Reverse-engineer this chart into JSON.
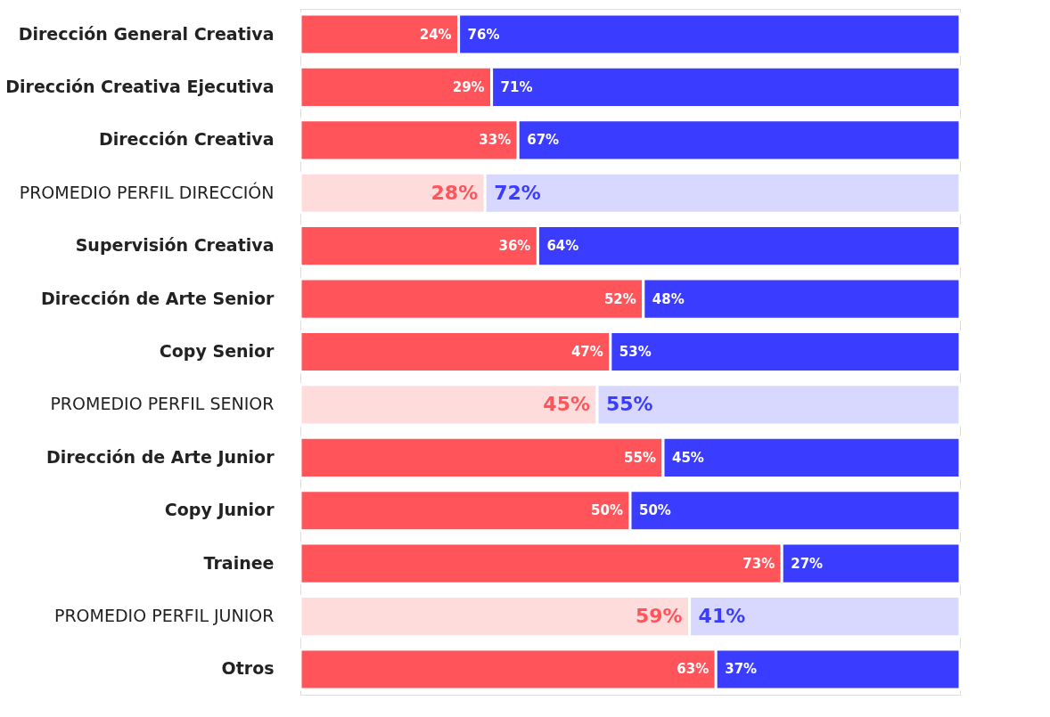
{
  "chart_data": {
    "type": "bar",
    "orientation": "horizontal",
    "stacked": true,
    "categories": [
      "Dirección General Creativa",
      "Dirección Creativa Ejecutiva",
      "Dirección Creativa",
      "PROMEDIO PERFIL DIRECCIÓN",
      "Supervisión Creativa",
      "Dirección de Arte Senior",
      "Copy Senior",
      "PROMEDIO PERFIL SENIOR",
      "Dirección de Arte Junior",
      "Copy Junior",
      "Trainee",
      "PROMEDIO PERFIL JUNIOR",
      "Otros"
    ],
    "xlim": [
      0,
      100
    ],
    "tick_labels": "y",
    "grid": false,
    "series": [
      {
        "color": "#ff5459",
        "colors": [
          "#ff5459",
          "#ff5459",
          "#ff5459",
          "#ffdcdc",
          "#ff5459",
          "#ff5459",
          "#ff5459",
          "#ffdcdc",
          "#ff5459",
          "#ff5459",
          "#ff5459",
          "#ffdcdc",
          "#ff5459"
        ],
        "values": [
          24,
          29,
          33,
          28,
          36,
          52,
          47,
          45,
          55,
          50,
          73,
          59,
          63
        ],
        "value_labels": [
          "24%",
          "29%",
          "33%",
          "28%",
          "36%",
          "52%",
          "47%",
          "45%",
          "55%",
          "50%",
          "73%",
          "59%",
          "63%"
        ]
      },
      {
        "color": "#3a3dff",
        "colors": [
          "#3a3dff",
          "#3a3dff",
          "#3a3dff",
          "#d8d8ff",
          "#3a3dff",
          "#3a3dff",
          "#3a3dff",
          "#d8d8ff",
          "#3a3dff",
          "#3a3dff",
          "#3a3dff",
          "#d8d8ff",
          "#3a3dff"
        ],
        "values": [
          76,
          71,
          67,
          72,
          64,
          48,
          53,
          55,
          45,
          50,
          27,
          41,
          37
        ],
        "value_labels": [
          "76%",
          "71%",
          "67%",
          "72%",
          "64%",
          "48%",
          "53%",
          "55%",
          "45%",
          "50%",
          "27%",
          "41%",
          "37%"
        ]
      }
    ]
  }
}
